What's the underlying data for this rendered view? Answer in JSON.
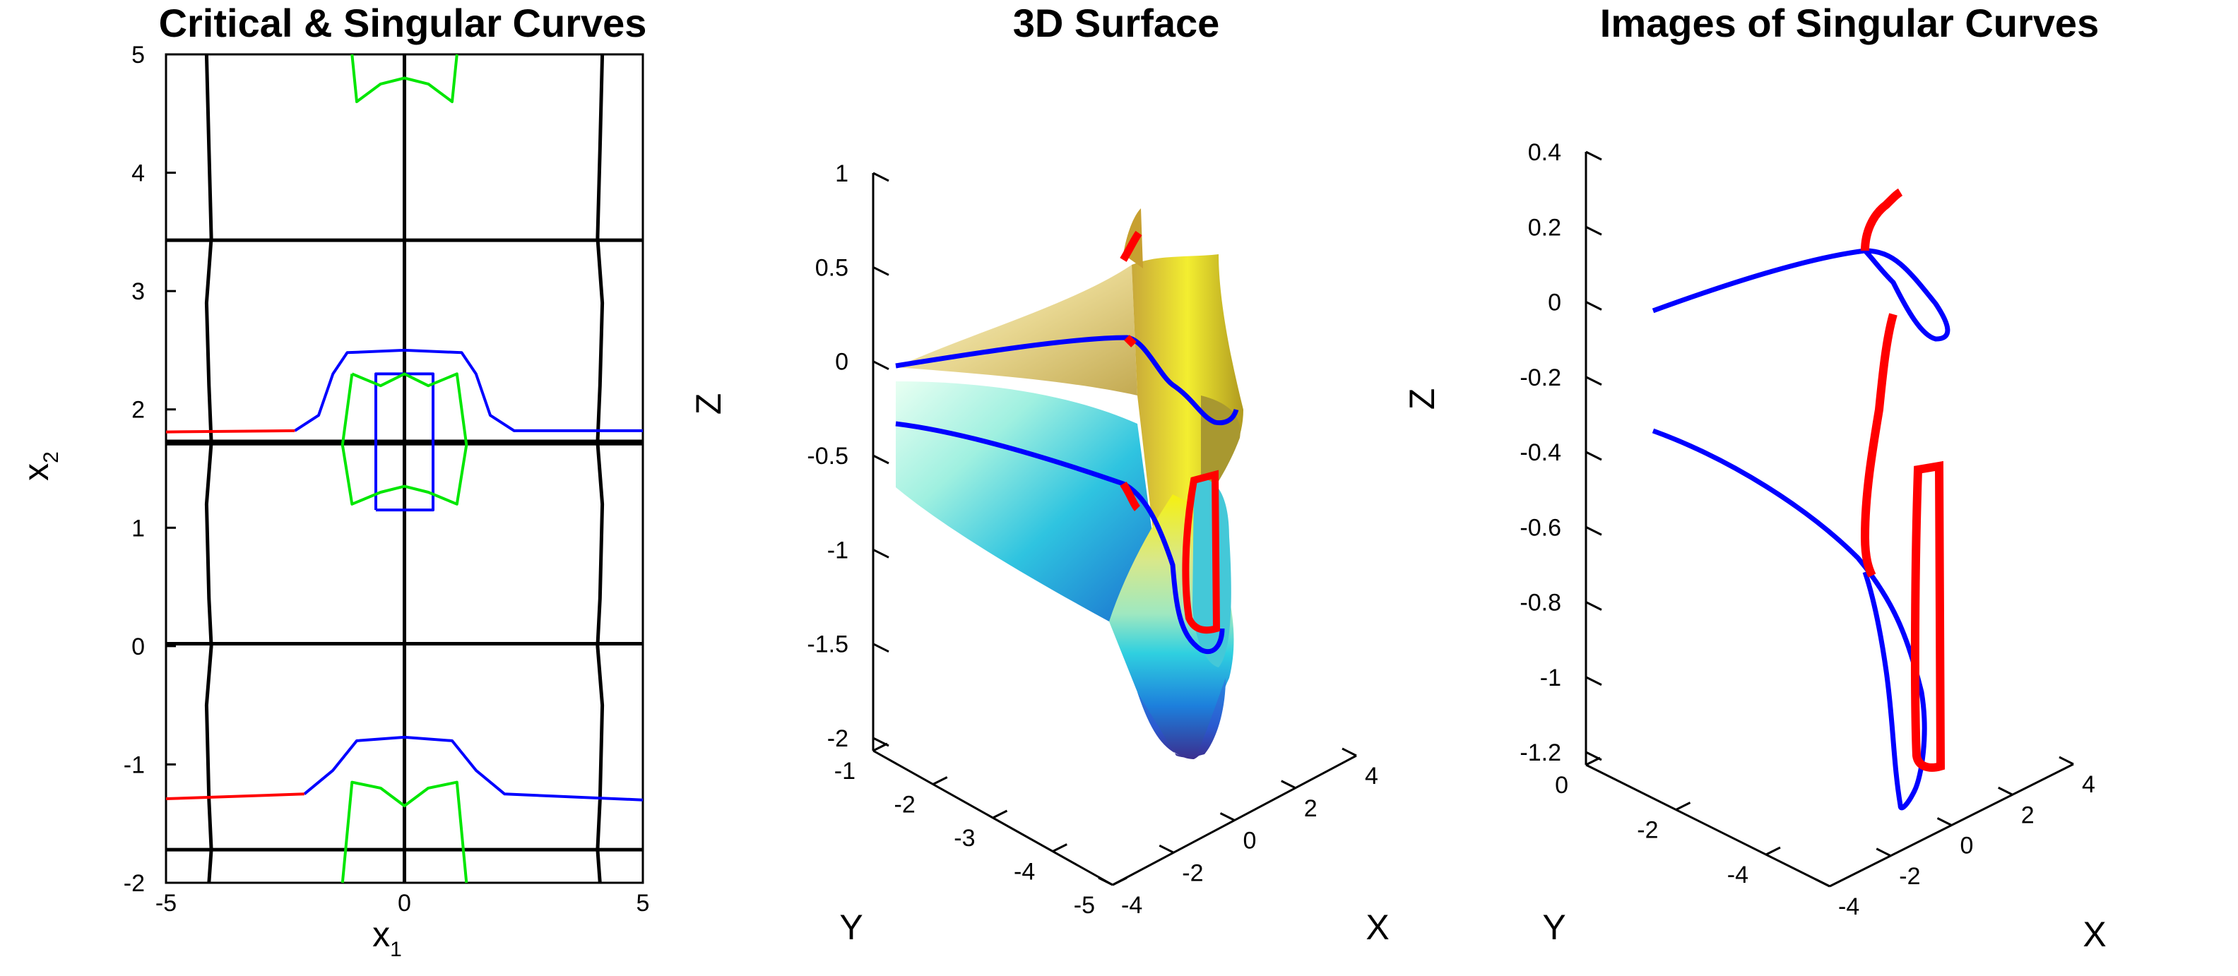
{
  "colors": {
    "critical": "#000000",
    "singular_blue": "#0000ff",
    "singular_red": "#ff0000",
    "green": "#00e600"
  },
  "chart_data": [
    {
      "type": "line",
      "title": "Critical & Singular Curves",
      "xlabel": "x",
      "xlabel_sub": "1",
      "ylabel": "x",
      "ylabel_sub": "2",
      "xlim": [
        -5,
        5
      ],
      "ylim": [
        -2,
        5
      ],
      "xticks": [
        "-5",
        "0",
        "5"
      ],
      "yticks": [
        "-2",
        "-1",
        "0",
        "1",
        "2",
        "3",
        "4",
        "5"
      ],
      "series": [
        {
          "color": "black",
          "segments": [
            [
              [
                -4.15,
                5
              ],
              [
                -4.1,
                4.2
              ],
              [
                -4.05,
                3.45
              ],
              [
                -4.15,
                2.9
              ],
              [
                -4.1,
                2.2
              ],
              [
                -4.05,
                1.72
              ],
              [
                -4.15,
                1.2
              ],
              [
                -4.1,
                0.4
              ],
              [
                -4.05,
                0
              ],
              [
                -4.15,
                -0.5
              ],
              [
                -4.1,
                -1.3
              ],
              [
                -4.05,
                -1.72
              ],
              [
                -4.1,
                -2
              ]
            ],
            [
              [
                4.15,
                5
              ],
              [
                4.1,
                4.2
              ],
              [
                4.05,
                3.45
              ],
              [
                4.15,
                2.9
              ],
              [
                4.1,
                2.2
              ],
              [
                4.05,
                1.72
              ],
              [
                4.15,
                1.2
              ],
              [
                4.1,
                0.4
              ],
              [
                4.05,
                0
              ],
              [
                4.15,
                -0.5
              ],
              [
                4.1,
                -1.3
              ],
              [
                4.05,
                -1.72
              ],
              [
                4.1,
                -2
              ]
            ],
            [
              [
                0,
                5
              ],
              [
                0,
                3.45
              ],
              [
                0,
                2.5
              ],
              [
                0,
                1.72
              ],
              [
                0,
                1.2
              ],
              [
                0,
                0
              ],
              [
                0,
                -1.2
              ],
              [
                0,
                -2
              ]
            ],
            [
              [
                -5,
                3.43
              ],
              [
                5,
                3.43
              ]
            ],
            [
              [
                -5,
                1.73
              ],
              [
                5,
                1.73
              ]
            ],
            [
              [
                -5,
                1.71
              ],
              [
                5,
                1.71
              ]
            ],
            [
              [
                -5,
                0.02
              ],
              [
                5,
                0.02
              ]
            ],
            [
              [
                -5,
                -1.72
              ],
              [
                5,
                -1.72
              ]
            ]
          ]
        },
        {
          "color": "blue",
          "segments": [
            [
              [
                -2.3,
                1.82
              ],
              [
                -1.8,
                1.95
              ],
              [
                -1.5,
                2.3
              ],
              [
                -1.2,
                2.48
              ],
              [
                0,
                2.5
              ],
              [
                1.2,
                2.48
              ],
              [
                1.5,
                2.3
              ],
              [
                1.8,
                1.95
              ],
              [
                2.3,
                1.82
              ],
              [
                5,
                1.82
              ]
            ],
            [
              [
                -0.6,
                1.15
              ],
              [
                -0.6,
                2.3
              ],
              [
                0.6,
                2.3
              ],
              [
                0.6,
                1.15
              ],
              [
                -0.6,
                1.15
              ]
            ],
            [
              [
                -2.1,
                -1.25
              ],
              [
                -1.5,
                -1.05
              ],
              [
                -1.0,
                -0.8
              ],
              [
                0,
                -0.77
              ],
              [
                1.0,
                -0.8
              ],
              [
                1.5,
                -1.05
              ],
              [
                2.1,
                -1.25
              ],
              [
                5,
                -1.3
              ]
            ]
          ]
        },
        {
          "color": "red",
          "segments": [
            [
              [
                -5,
                1.81
              ],
              [
                -2.3,
                1.82
              ]
            ],
            [
              [
                -5,
                -1.29
              ],
              [
                -2.1,
                -1.25
              ]
            ]
          ]
        },
        {
          "color": "green",
          "segments": [
            [
              [
                -1.1,
                5
              ],
              [
                -1.0,
                4.6
              ],
              [
                -0.5,
                4.75
              ],
              [
                0,
                4.8
              ],
              [
                0.5,
                4.75
              ],
              [
                1.0,
                4.6
              ],
              [
                1.1,
                5
              ]
            ],
            [
              [
                -1.1,
                2.3
              ],
              [
                -1.3,
                1.7
              ],
              [
                -1.1,
                1.2
              ],
              [
                -0.5,
                1.3
              ],
              [
                0,
                1.35
              ],
              [
                0.5,
                1.3
              ],
              [
                1.1,
                1.2
              ],
              [
                1.3,
                1.7
              ],
              [
                1.1,
                2.3
              ],
              [
                0.5,
                2.2
              ],
              [
                0,
                2.3
              ],
              [
                -0.5,
                2.2
              ],
              [
                -1.1,
                2.3
              ]
            ],
            [
              [
                -1.3,
                -2
              ],
              [
                -1.1,
                -1.15
              ],
              [
                -0.5,
                -1.2
              ],
              [
                0,
                -1.35
              ],
              [
                0.5,
                -1.2
              ],
              [
                1.1,
                -1.15
              ],
              [
                1.3,
                -2
              ]
            ]
          ]
        }
      ]
    },
    {
      "type": "surface",
      "title": "3D Surface",
      "xlabel": "X",
      "ylabel": "Y",
      "zlabel": "Z",
      "zticks": [
        "1",
        "0.5",
        "0",
        "-0.5",
        "-1",
        "-1.5",
        "-2"
      ],
      "yticks": [
        "-1",
        "-2",
        "-3",
        "-4",
        "-5"
      ],
      "xticks": [
        "-4",
        "-2",
        "0",
        "2",
        "4"
      ],
      "zlim": [
        -2,
        1
      ],
      "colormap": [
        "#3b2f8f",
        "#1d7fdc",
        "#2fd0e0",
        "#b8f0a0",
        "#f0d040",
        "#f5f010"
      ]
    },
    {
      "type": "line3d",
      "title": "Images of Singular Curves",
      "xlabel": "X",
      "ylabel": "Y",
      "zlabel": "Z",
      "zticks": [
        "0.4",
        "0.2",
        "0",
        "-0.2",
        "-0.4",
        "-0.6",
        "-0.8",
        "-1",
        "-1.2"
      ],
      "yticks": [
        "0",
        "-2",
        "-4"
      ],
      "xticks": [
        "-4",
        "-2",
        "0",
        "2",
        "4"
      ],
      "zlim": [
        -1.2,
        0.4
      ]
    }
  ]
}
